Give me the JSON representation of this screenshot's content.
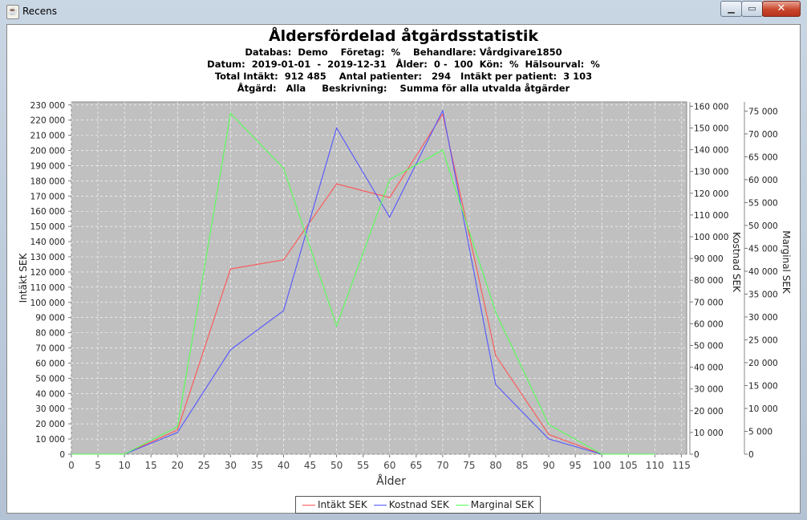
{
  "window": {
    "title": "Recens",
    "icon": "java-cup-icon"
  },
  "header": {
    "title": "Åldersfördelad åtgärdsstatistik",
    "line1": "Databas:  Demo    Företag:  %    Behandlare: Vårdgivare1850",
    "line2": "Datum:  2019-01-01  -  2019-12-31   Ålder:  0 -  100  Kön:  %  Hälsourval:  %",
    "line3": "Total Intäkt:  912 485    Antal patienter:   294   Intäkt per patient:  3 103",
    "line4": "Åtgärd:   Alla     Beskrivning:    Summa för alla utvalda åtgärder"
  },
  "chart_data": {
    "type": "line",
    "title": "Åldersfördelad åtgärdsstatistik",
    "xlabel": "Ålder",
    "x": [
      0,
      10,
      20,
      30,
      40,
      50,
      60,
      70,
      80,
      90,
      100,
      110
    ],
    "xlim": [
      0,
      116
    ],
    "xticks": [
      "0",
      "5",
      "10",
      "15",
      "20",
      "25",
      "30",
      "35",
      "40",
      "45",
      "50",
      "55",
      "60",
      "65",
      "70",
      "75",
      "80",
      "85",
      "90",
      "95",
      "100",
      "105",
      "110",
      "115"
    ],
    "grid": true,
    "legend_position": "bottom",
    "axes": [
      {
        "id": "left",
        "label": "Intäkt SEK",
        "ylim": [
          0,
          232000
        ],
        "ticks": [
          "0",
          "10 000",
          "20 000",
          "30 000",
          "40 000",
          "50 000",
          "60 000",
          "70 000",
          "80 000",
          "90 000",
          "100 000",
          "110 000",
          "120 000",
          "130 000",
          "140 000",
          "150 000",
          "160 000",
          "170 000",
          "180 000",
          "190 000",
          "200 000",
          "210 000",
          "220 000",
          "230 000"
        ]
      },
      {
        "id": "right1",
        "label": "Kostnad  SEK",
        "ylim": [
          0,
          162000
        ],
        "ticks": [
          "0",
          "10 000",
          "20 000",
          "30 000",
          "40 000",
          "50 000",
          "60 000",
          "70 000",
          "80 000",
          "90 000",
          "100 000",
          "110 000",
          "120 000",
          "130 000",
          "140 000",
          "150 000",
          "160 000"
        ]
      },
      {
        "id": "right2",
        "label": "Marginal  SEK",
        "ylim": [
          0,
          77000
        ],
        "ticks": [
          "0",
          "5 000",
          "10 000",
          "15 000",
          "20 000",
          "25 000",
          "30 000",
          "35 000",
          "40 000",
          "45 000",
          "50 000",
          "55 000",
          "60 000",
          "65 000",
          "70 000",
          "75 000"
        ]
      }
    ],
    "series": [
      {
        "name": "Intäkt SEK",
        "axis": "left",
        "color": "#ff5555",
        "values": [
          0,
          0,
          16000,
          122000,
          128000,
          178000,
          169000,
          224000,
          65000,
          13000,
          0,
          0
        ]
      },
      {
        "name": "Kostnad SEK",
        "axis": "right1",
        "color": "#5555ff",
        "values": [
          0,
          0,
          10000,
          48000,
          66000,
          150000,
          109000,
          158000,
          32000,
          7000,
          0,
          0
        ]
      },
      {
        "name": "Marginal SEK",
        "axis": "right2",
        "color": "#55ff55",
        "values": [
          0,
          0,
          6000,
          74500,
          62500,
          28000,
          60000,
          66500,
          31000,
          6500,
          0,
          0
        ]
      }
    ],
    "plot_background": "#c0c0c0",
    "grid_color": "#ffffff"
  }
}
